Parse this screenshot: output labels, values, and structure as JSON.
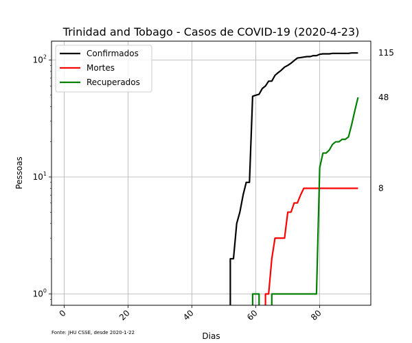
{
  "chart_data": {
    "type": "line",
    "title": "Trinidad and Tobago - Casos de COVID-19 (2020-4-23)",
    "xlabel": "Dias",
    "ylabel": "Pessoas",
    "y_scale": "log",
    "xlim": [
      -4,
      96
    ],
    "ylim": [
      0.8,
      145
    ],
    "x_ticks": [
      0,
      20,
      40,
      60,
      80
    ],
    "y_ticks": [
      {
        "value": 1,
        "base": "10",
        "exp": "0"
      },
      {
        "value": 10,
        "base": "10",
        "exp": "1"
      },
      {
        "value": 100,
        "base": "10",
        "exp": "2"
      }
    ],
    "grid": true,
    "legend_position": "top-left",
    "series": [
      {
        "name": "Confirmados",
        "color": "#000000",
        "points": [
          [
            52,
            0.5
          ],
          [
            52,
            2
          ],
          [
            53,
            2
          ],
          [
            54,
            4
          ],
          [
            55,
            5
          ],
          [
            56,
            7
          ],
          [
            57,
            9
          ],
          [
            58,
            9
          ],
          [
            59,
            49
          ],
          [
            60,
            50
          ],
          [
            61,
            51
          ],
          [
            62,
            57
          ],
          [
            63,
            60
          ],
          [
            64,
            66
          ],
          [
            65,
            66
          ],
          [
            66,
            74
          ],
          [
            67,
            78
          ],
          [
            68,
            82
          ],
          [
            69,
            87
          ],
          [
            70,
            90
          ],
          [
            71,
            94
          ],
          [
            72,
            99
          ],
          [
            73,
            104
          ],
          [
            74,
            105
          ],
          [
            75,
            106
          ],
          [
            76,
            107
          ],
          [
            77,
            107
          ],
          [
            78,
            109
          ],
          [
            79,
            109
          ],
          [
            80,
            112
          ],
          [
            81,
            113
          ],
          [
            82,
            113
          ],
          [
            83,
            113
          ],
          [
            84,
            114
          ],
          [
            85,
            114
          ],
          [
            86,
            114
          ],
          [
            87,
            114
          ],
          [
            88,
            114
          ],
          [
            89,
            114
          ],
          [
            90,
            115
          ],
          [
            91,
            115
          ],
          [
            92,
            115
          ]
        ],
        "end_label": "115"
      },
      {
        "name": "Mortes",
        "color": "#ff0000",
        "points": [
          [
            63,
            0.5
          ],
          [
            63,
            1
          ],
          [
            64,
            1
          ],
          [
            65,
            2
          ],
          [
            66,
            3
          ],
          [
            67,
            3
          ],
          [
            68,
            3
          ],
          [
            69,
            3
          ],
          [
            70,
            5
          ],
          [
            71,
            5
          ],
          [
            72,
            6
          ],
          [
            73,
            6
          ],
          [
            74,
            7
          ],
          [
            75,
            8
          ],
          [
            76,
            8
          ],
          [
            77,
            8
          ],
          [
            78,
            8
          ],
          [
            79,
            8
          ],
          [
            80,
            8
          ],
          [
            81,
            8
          ],
          [
            82,
            8
          ],
          [
            83,
            8
          ],
          [
            84,
            8
          ],
          [
            85,
            8
          ],
          [
            86,
            8
          ],
          [
            87,
            8
          ],
          [
            88,
            8
          ],
          [
            89,
            8
          ],
          [
            90,
            8
          ],
          [
            91,
            8
          ],
          [
            92,
            8
          ]
        ],
        "end_label": "8"
      },
      {
        "name": "Recuperados",
        "color": "#008000",
        "points": [
          [
            59,
            0.5
          ],
          [
            59,
            1
          ],
          [
            61,
            1
          ],
          [
            61,
            0.5
          ],
          [
            65,
            0.5
          ],
          [
            65,
            1
          ],
          [
            66,
            1
          ],
          [
            67,
            1
          ],
          [
            68,
            1
          ],
          [
            69,
            1
          ],
          [
            70,
            1
          ],
          [
            71,
            1
          ],
          [
            72,
            1
          ],
          [
            73,
            1
          ],
          [
            74,
            1
          ],
          [
            75,
            1
          ],
          [
            76,
            1
          ],
          [
            77,
            1
          ],
          [
            78,
            1
          ],
          [
            79,
            1
          ],
          [
            80,
            12
          ],
          [
            81,
            16
          ],
          [
            82,
            16
          ],
          [
            83,
            17
          ],
          [
            84,
            19
          ],
          [
            85,
            20
          ],
          [
            86,
            20
          ],
          [
            87,
            21
          ],
          [
            88,
            21
          ],
          [
            89,
            22
          ],
          [
            90,
            28
          ],
          [
            91,
            37
          ],
          [
            92,
            48
          ]
        ],
        "end_label": "48"
      }
    ],
    "source_note": "Fonte: JHU CSSE, desde 2020-1-22"
  }
}
